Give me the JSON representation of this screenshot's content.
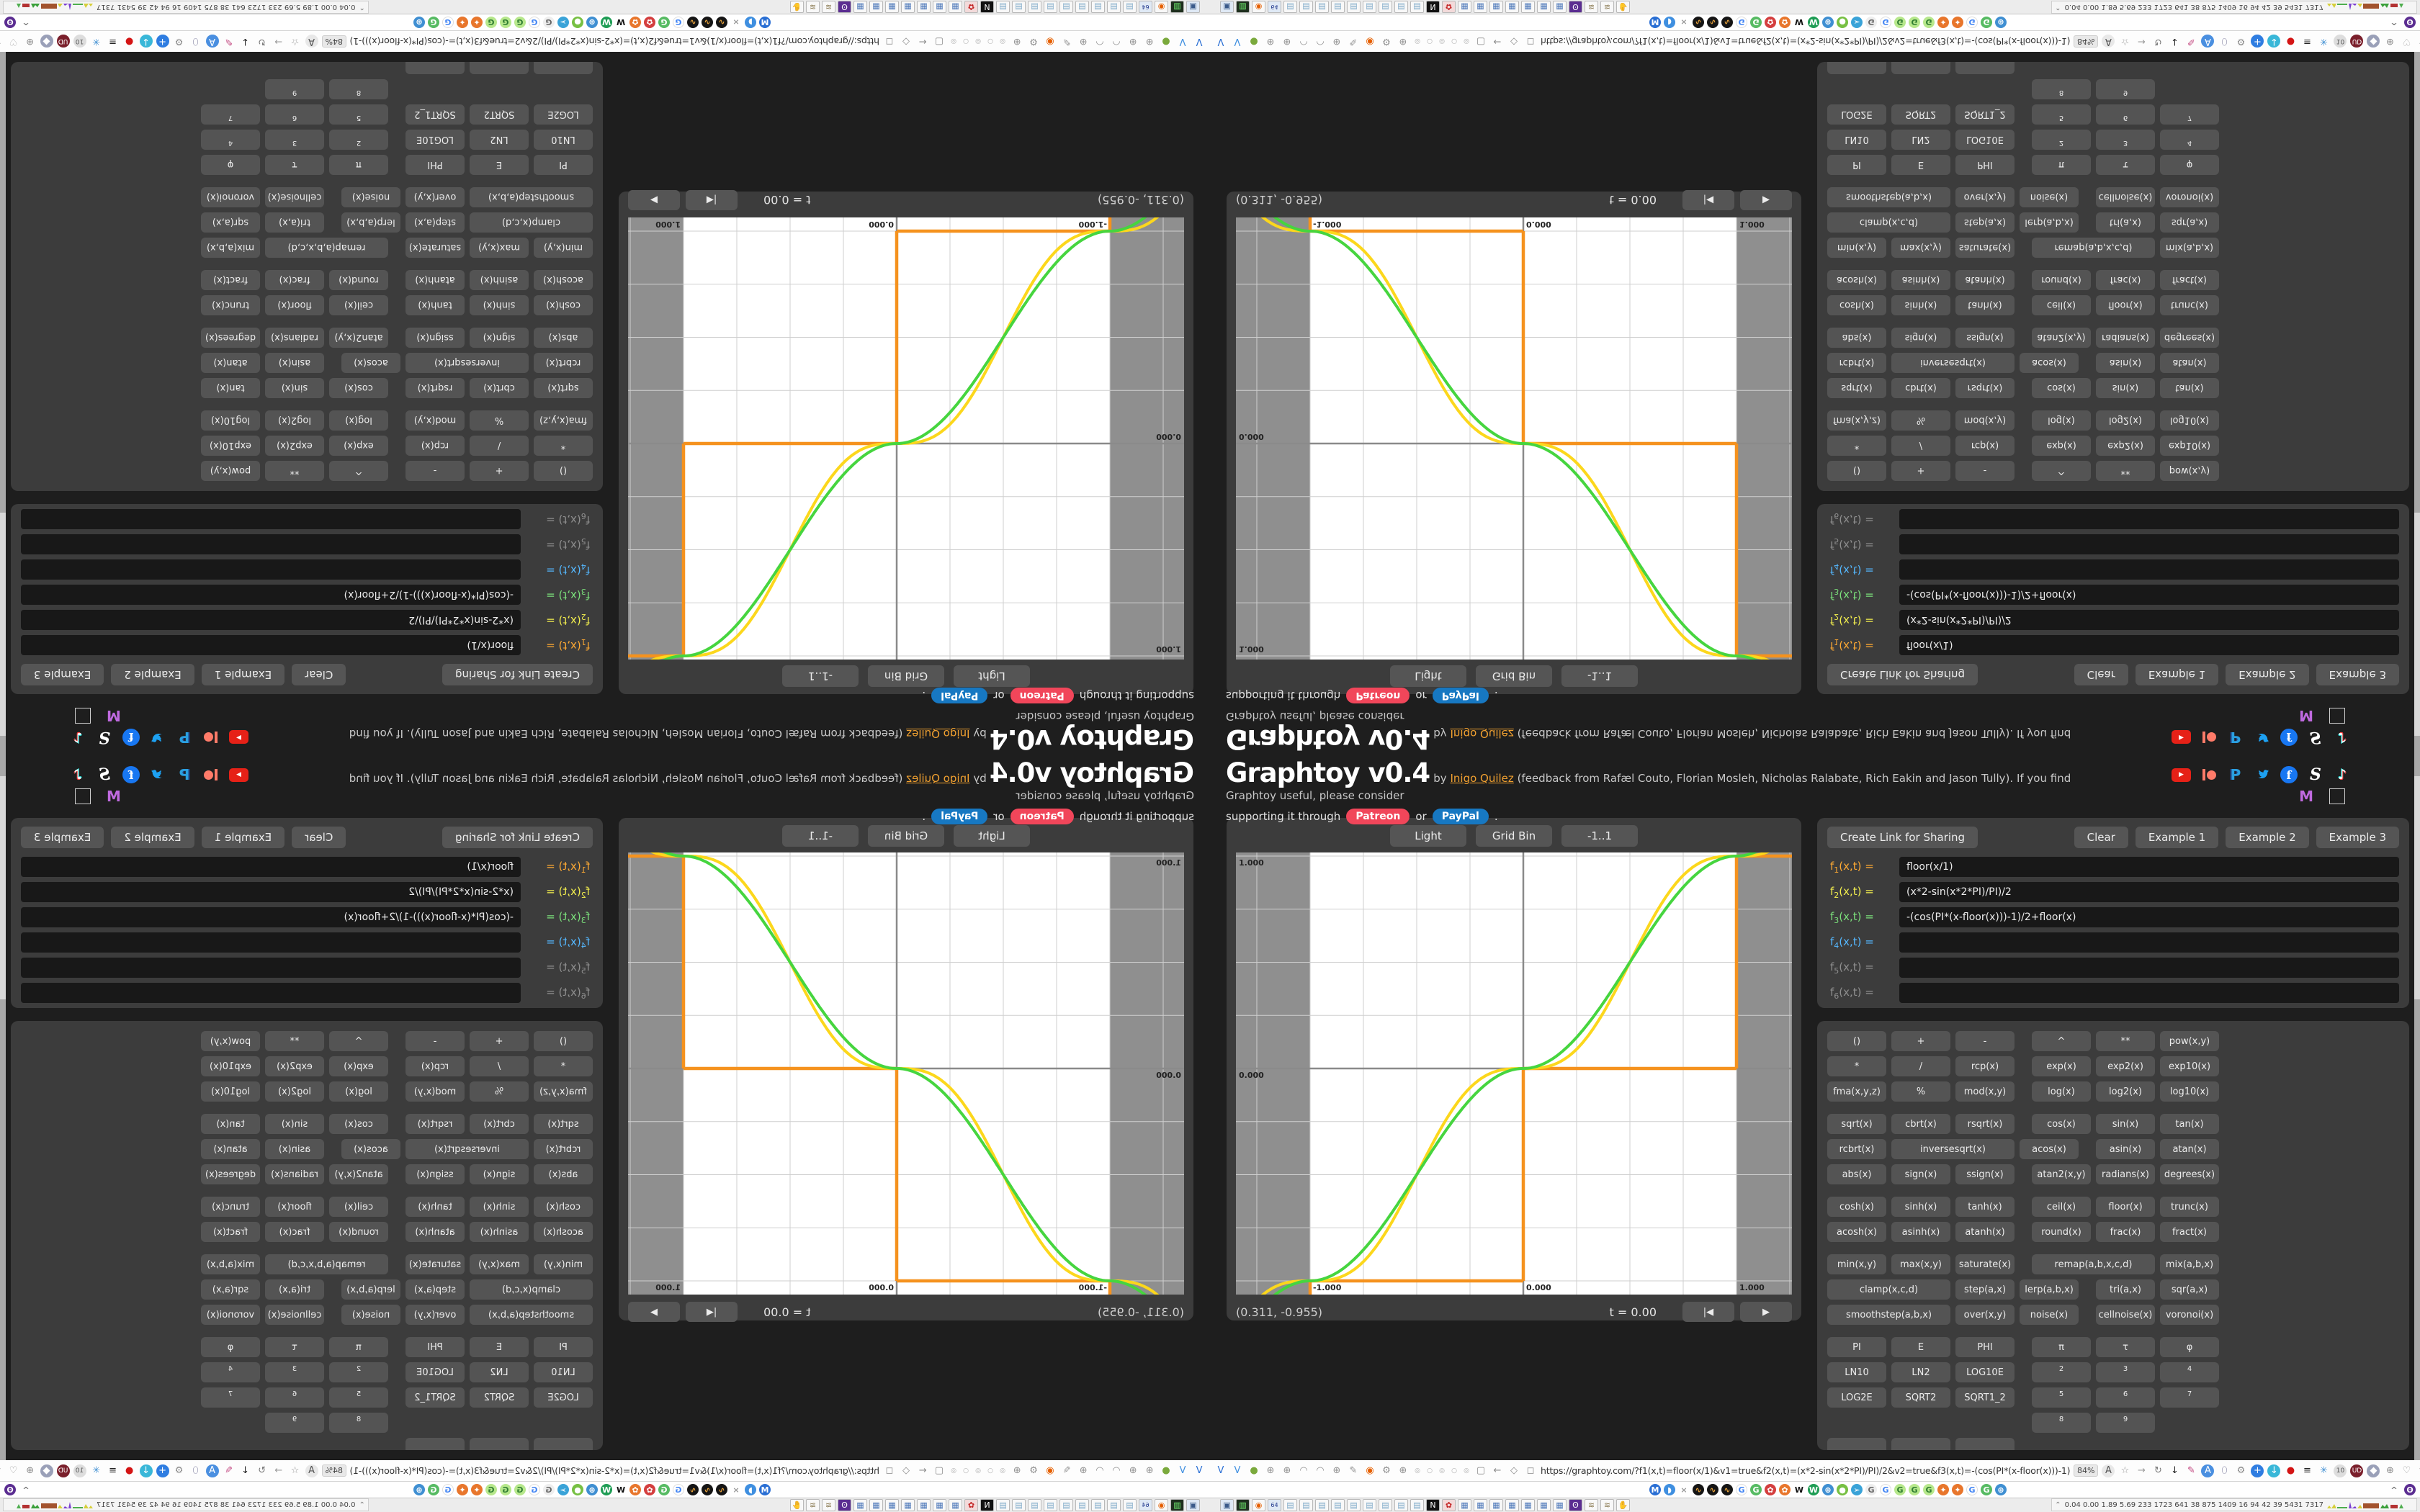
{
  "page": {
    "header": {
      "title": "Graphtoy v0.4",
      "by": "by",
      "author": "Inigo Quilez",
      "byline": "(feedback from Rafæl Couto, Florian Mosleh, Nicholas Ralabate, Rich Eakin and Jason Tully). If you find Graphtoy useful, please consider",
      "support_prefix": "supporting it through",
      "patreon": "Patreon",
      "or": "or",
      "paypal": "PayPal",
      "period": "."
    },
    "social": [
      "youtube-icon",
      "patreon-icon",
      "paypal-icon",
      "twitter-icon",
      "facebook-icon",
      "substack-icon",
      "tiktok-icon"
    ],
    "social2": [
      "mastodon-m-icon",
      "broken-image-icon"
    ],
    "graph": {
      "toolbar": [
        "Light",
        "Grid Bin",
        "-1..1"
      ],
      "coords": "(0.311, -0.955)",
      "time": "t = 0.00",
      "rewind_label": "|◀",
      "play_label": "▶"
    },
    "formulas": {
      "create_link": "Create Link for Sharing",
      "actions": [
        "Clear",
        "Example 1",
        "Example 2",
        "Example 3"
      ],
      "label_suffix": "(x,t) =",
      "rows": [
        {
          "idx": "1",
          "value": "floor(x/1)",
          "color": "#ffaa33"
        },
        {
          "idx": "2",
          "value": "(x*2-sin(x*2*PI)/PI)/2",
          "color": "#f2ee4e"
        },
        {
          "idx": "3",
          "value": "-(cos(PI*(x-floor(x)))-1)/2+floor(x)",
          "color": "#7be07b"
        },
        {
          "idx": "4",
          "value": "",
          "color": "#55b8ff"
        },
        {
          "idx": "5",
          "value": "",
          "color": "#8f8f8f"
        },
        {
          "idx": "6",
          "value": "",
          "color": "#8f8f8f"
        }
      ]
    },
    "grid_rows": [
      {
        "cells": [
          {
            "t": "()"
          },
          {
            "t": "+"
          },
          {
            "t": "-"
          },
          {
            "t": "^"
          },
          {
            "t": "**"
          },
          {
            "t": "pow(x,y)"
          }
        ]
      },
      {
        "cells": [
          {
            "t": "*"
          },
          {
            "t": "/"
          },
          {
            "t": "rcp(x)"
          },
          {
            "t": "exp(x)"
          },
          {
            "t": "exp2(x)"
          },
          {
            "t": "exp10(x)"
          }
        ]
      },
      {
        "cells": [
          {
            "t": "fma(x,y,z)"
          },
          {
            "t": "%"
          },
          {
            "t": "mod(x,y)"
          },
          {
            "t": "log(x)"
          },
          {
            "t": "log2(x)"
          },
          {
            "t": "log10(x)"
          }
        ]
      },
      {
        "grp": true,
        "cells": [
          {
            "t": "sqrt(x)"
          },
          {
            "t": "cbrt(x)"
          },
          {
            "t": "rsqrt(x)"
          },
          {
            "t": "cos(x)"
          },
          {
            "t": "sin(x)"
          },
          {
            "t": "tan(x)"
          }
        ]
      },
      {
        "cells": [
          {
            "t": "rcbrt(x)"
          },
          {
            "t": "inversesqrt(x)",
            "span": 2
          },
          {
            "t": "acos(x)"
          },
          {
            "t": "asin(x)"
          },
          {
            "t": "atan(x)"
          }
        ]
      },
      {
        "cells": [
          {
            "t": "abs(x)"
          },
          {
            "t": "sign(x)"
          },
          {
            "t": "ssign(x)"
          },
          {
            "t": "atan2(x,y)"
          },
          {
            "t": "radians(x)"
          },
          {
            "t": "degrees(x)"
          }
        ]
      },
      {
        "grp": true,
        "cells": [
          {
            "t": "cosh(x)"
          },
          {
            "t": "sinh(x)"
          },
          {
            "t": "tanh(x)"
          },
          {
            "t": "ceil(x)"
          },
          {
            "t": "floor(x)"
          },
          {
            "t": "trunc(x)"
          }
        ]
      },
      {
        "cells": [
          {
            "t": "acosh(x)"
          },
          {
            "t": "asinh(x)"
          },
          {
            "t": "atanh(x)"
          },
          {
            "t": "round(x)"
          },
          {
            "t": "frac(x)"
          },
          {
            "t": "fract(x)"
          }
        ]
      },
      {
        "grp": true,
        "cells": [
          {
            "t": "min(x,y)"
          },
          {
            "t": "max(x,y)"
          },
          {
            "t": "saturate(x)"
          },
          {
            "t": "remap(a,b,x,c,d)",
            "span": 2
          },
          {
            "t": "mix(a,b,x)"
          }
        ]
      },
      {
        "cells": [
          {
            "t": "clamp(x,c,d)",
            "span": 2
          },
          {
            "t": "step(a,x)"
          },
          {
            "t": "lerp(a,b,x)"
          },
          {
            "t": "tri(a,x)"
          },
          {
            "t": "sqr(a,x)"
          }
        ]
      },
      {
        "cells": [
          {
            "t": "smoothstep(a,b,x)",
            "span": 2
          },
          {
            "t": "over(x,y)"
          },
          {
            "t": "noise(x)"
          },
          {
            "t": "cellnoise(x)"
          },
          {
            "t": "voronoi(x)"
          }
        ]
      },
      {
        "grp": true,
        "cells": [
          {
            "t": "PI"
          },
          {
            "t": "E"
          },
          {
            "t": "PHI"
          },
          {
            "t": "π",
            "cls": "konst"
          },
          {
            "t": "τ",
            "cls": "konst"
          },
          {
            "t": "φ",
            "cls": "konst"
          }
        ]
      },
      {
        "cells": [
          {
            "t": "LN10"
          },
          {
            "t": "LN2"
          },
          {
            "t": "LOG10E"
          },
          {
            "t": "2",
            "cls": "sup"
          },
          {
            "t": "3",
            "cls": "sup"
          },
          {
            "t": "4",
            "cls": "sup"
          }
        ]
      },
      {
        "cells": [
          {
            "t": "LOG2E"
          },
          {
            "t": "SQRT2"
          },
          {
            "t": "SQRT1_2"
          },
          {
            "t": "5",
            "cls": "sup"
          },
          {
            "t": "6",
            "cls": "sup"
          },
          {
            "t": "7",
            "cls": "sup"
          }
        ]
      },
      {
        "cells": [
          {
            "t": "",
            "ghost": true
          },
          {
            "t": "",
            "ghost": true
          },
          {
            "t": "",
            "ghost": true
          },
          {
            "t": "8",
            "cls": "sup"
          },
          {
            "t": "9",
            "cls": "sup"
          },
          {
            "t": "",
            "ghost": true
          }
        ]
      },
      {
        "cells": [
          {
            "t": ""
          },
          {
            "t": ""
          },
          {
            "t": ""
          },
          {
            "t": "",
            "ghost": true
          },
          {
            "t": "",
            "ghost": true
          },
          {
            "t": "",
            "ghost": true
          }
        ]
      }
    ]
  },
  "chart_data": {
    "type": "line",
    "title": "",
    "xlabel": "",
    "ylabel": "",
    "x_range": [
      -1.35,
      1.26
    ],
    "y_range": [
      -1.04,
      1.02
    ],
    "highlight_band_x": [
      -1,
      1
    ],
    "grid_step": 0.25,
    "x_tick_labels": [
      {
        "x": -1,
        "t": "-1.000"
      },
      {
        "x": 0,
        "t": "0.000"
      },
      {
        "x": 1,
        "t": "1.000"
      }
    ],
    "y_tick_labels": [
      {
        "y": 1,
        "t": "1.000"
      },
      {
        "y": 0,
        "t": "0.000"
      }
    ],
    "legend_position": "none",
    "series": [
      {
        "id": "f1",
        "formula": "floor(x/1)",
        "color": "#f5921e",
        "style": "step",
        "lattice_points": [
          [
            -2,
            -2
          ],
          [
            -1,
            -1
          ],
          [
            0,
            0
          ],
          [
            1,
            1
          ]
        ]
      },
      {
        "id": "f2",
        "formula": "(x*2-sin(x*2*PI)/PI)/2",
        "color": "#fcd71c",
        "style": "smooth"
      },
      {
        "id": "f3",
        "formula": "-(cos(PI*(x-floor(x)))-1)/2+floor(x)",
        "color": "#46d53f",
        "style": "smooth"
      }
    ],
    "colors": {
      "plot_bg": "#ffffff",
      "out_of_range_bg": "#8f8f8f",
      "grid": "#cfcfcf",
      "axis": "#8a8a8a",
      "label": "#222222"
    }
  },
  "browser": {
    "url": "https://graphtoy.com/?f1(x,t)=floor(x/1)&v1=true&f2(x,t)=(x*2-sin(x*2*PI)/PI)/2&v2=true&f3(x,t)=-(cos(PI*(x-floor(x)))-1)/2+floor(x)&v3=true&f4(x,t)=&v4=true&f5(x,t)=&v5=false",
    "zoom": "84%",
    "left_icons": [
      {
        "t": "V",
        "fg": "#2a6fd4"
      },
      {
        "t": "V",
        "fg": "#3f8fe0"
      },
      {
        "t": "●",
        "fg": "#7aa93c"
      },
      {
        "t": "⊕",
        "fg": "#909090"
      },
      {
        "t": "⊕",
        "fg": "#909090"
      },
      {
        "t": "◠",
        "fg": "#909090"
      },
      {
        "t": "◠",
        "fg": "#909090"
      },
      {
        "t": "⊕",
        "fg": "#909090"
      },
      {
        "t": "✎",
        "fg": "#909090"
      },
      {
        "t": "◉",
        "fg": "#e66000"
      },
      {
        "t": "⚙",
        "fg": "#909090"
      },
      {
        "t": "⊕",
        "fg": "#909090"
      }
    ],
    "crumb_icons": [
      {
        "t": "◎",
        "fg": "#aaa"
      },
      {
        "t": "○",
        "fg": "#aaa"
      },
      {
        "t": "◎",
        "fg": "#aaa"
      },
      {
        "t": "○",
        "fg": "#aaa"
      },
      {
        "t": "◎",
        "fg": "#aaa"
      }
    ],
    "nav_icons": [
      {
        "t": "▢",
        "fg": "#8a8a8a"
      },
      {
        "t": "←",
        "fg": "#8a8a8a"
      },
      {
        "t": "◇",
        "fg": "#8a8a8a"
      },
      {
        "t": "◻",
        "fg": "#8a8a8a"
      }
    ],
    "right_icons": [
      {
        "t": "A",
        "fg": "#555",
        "bg": "#e8e8e8"
      },
      {
        "t": "☆",
        "fg": "#9a9a9a"
      },
      {
        "t": "→",
        "fg": "#9a9a9a"
      },
      {
        "t": "↻",
        "fg": "#777"
      },
      {
        "t": "↓",
        "fg": "#222"
      },
      {
        "t": "✎",
        "fg": "#c2447e"
      },
      {
        "t": "A",
        "fg": "#fff",
        "bg": "#4a8fe0"
      },
      {
        "t": "⬯",
        "fg": "#8a8aa8"
      },
      {
        "t": "⚙",
        "fg": "#8a8a8a"
      },
      {
        "t": "+",
        "fg": "#fff",
        "bg": "#2f7de1"
      },
      {
        "t": "↓",
        "fg": "#fff",
        "bg": "#39b7d8"
      },
      {
        "t": "●",
        "fg": "#d41414"
      },
      {
        "t": "≡",
        "fg": "#222"
      },
      {
        "t": "✳",
        "fg": "#3f8fd2"
      },
      {
        "t": "10",
        "fg": "#555",
        "bg": "#ddd"
      },
      {
        "t": "UD",
        "fg": "#fff",
        "bg": "#7a1f2b"
      },
      {
        "t": "◆",
        "fg": "#fff",
        "bg": "#9aa0b8"
      },
      {
        "t": "⊕",
        "fg": "#8a8a8a"
      },
      {
        "t": "♡",
        "fg": "#9a9a9a"
      },
      {
        "t": "⚒",
        "fg": "#8a8a8a"
      },
      {
        "t": "⚙",
        "fg": "#8a8a8a"
      }
    ],
    "page_action": {
      "t": "●",
      "fg": "#35c04a"
    },
    "bookmarks": [
      {
        "t": "M",
        "fg": "#fff",
        "bg": "#2a6fd4"
      },
      {
        "t": "◗",
        "fg": "#fff",
        "bg": "#3f8fe0"
      },
      {
        "t": "×",
        "fg": "#999"
      },
      {
        "t": "∿",
        "fg": "#e8a33d",
        "bg": "#151515"
      },
      {
        "t": "∿",
        "fg": "#e8a33d",
        "bg": "#151515"
      },
      {
        "t": "∿",
        "fg": "#e8a33d",
        "bg": "#151515"
      },
      {
        "t": "G",
        "fg": "#4285f4",
        "bg": "#fff",
        "br": true
      },
      {
        "t": "G",
        "fg": "#fff",
        "bg": "#57bb63"
      },
      {
        "t": "✿",
        "fg": "#fff",
        "bg": "#d43f3f"
      },
      {
        "t": "✿",
        "fg": "#fff",
        "bg": "#e8762c"
      },
      {
        "t": "W",
        "fg": "#111"
      },
      {
        "t": "W",
        "fg": "#fff",
        "bg": "#1f9d55"
      },
      {
        "t": "⊕",
        "fg": "#fff",
        "bg": "#3f8fd2"
      },
      {
        "t": "●",
        "fg": "#fff",
        "bg": "#77c043"
      },
      {
        "t": "➢",
        "fg": "#fff",
        "bg": "#3aa3d8"
      },
      {
        "t": "G",
        "fg": "#666",
        "bg": "#eee"
      },
      {
        "t": "G",
        "fg": "#4285f4",
        "bg": "#fff",
        "br": true
      },
      {
        "t": "G",
        "fg": "#2f7d32",
        "bg": "#b7e88c"
      },
      {
        "t": "G",
        "fg": "#2f7d32",
        "bg": "#b7e88c"
      },
      {
        "t": "G",
        "fg": "#2f7d32",
        "bg": "#b7e88c"
      },
      {
        "t": "✦",
        "fg": "#fff",
        "bg": "#e8762c"
      },
      {
        "t": "✦",
        "fg": "#fff",
        "bg": "#e8762c"
      },
      {
        "t": "G",
        "fg": "#4285f4",
        "bg": "#fff",
        "br": true
      },
      {
        "t": "G",
        "fg": "#fff",
        "bg": "#57bb63"
      },
      {
        "t": "⊕",
        "fg": "#fff",
        "bg": "#3f8fd2"
      }
    ],
    "bookmarks_right": [
      {
        "t": "^",
        "fg": "#777"
      },
      {
        "t": "ʘ",
        "fg": "#fff",
        "bg": "#5b2d91"
      }
    ],
    "tray": "0.04 0.00 1.89 5.69 233 1723 641 38 875 1409 16 94 42 39 5431 7317"
  },
  "taskbar": {
    "buttons": [
      {
        "t": "▣",
        "fg": "#3a5a8a",
        "bg": "#dfe9f5"
      },
      {
        "t": "▥",
        "fg": "#77ff77",
        "bg": "#1e2f1e"
      },
      {
        "t": "◉",
        "fg": "#e66000"
      },
      {
        "t": "64",
        "fg": "#223a8f",
        "bg": "#dfe9f5"
      },
      {
        "t": "▤",
        "fg": "#7aa7c7"
      },
      {
        "t": "▤",
        "fg": "#7aa7c7"
      },
      {
        "t": "▤",
        "fg": "#7aa7c7"
      },
      {
        "t": "▤",
        "fg": "#7aa7c7"
      },
      {
        "t": "▤",
        "fg": "#7aa7c7"
      },
      {
        "t": "▤",
        "fg": "#7aa7c7"
      },
      {
        "t": "▤",
        "fg": "#7aa7c7"
      },
      {
        "t": "▤",
        "fg": "#7aa7c7"
      },
      {
        "t": "▤",
        "fg": "#7aa7c7"
      },
      {
        "t": "N",
        "fg": "#fff",
        "bg": "#111"
      },
      {
        "t": "✿",
        "fg": "#c22222",
        "bg": "#f3dada"
      },
      {
        "t": "▦",
        "fg": "#4a76b8"
      },
      {
        "t": "▦",
        "fg": "#4a76b8"
      },
      {
        "t": "▦",
        "fg": "#4a76b8"
      },
      {
        "t": "▦",
        "fg": "#4a76b8"
      },
      {
        "t": "▦",
        "fg": "#4a76b8"
      },
      {
        "t": "▦",
        "fg": "#4a76b8"
      },
      {
        "t": "▦",
        "fg": "#4a76b8"
      },
      {
        "t": "ʘ",
        "fg": "#fff",
        "bg": "#5b2d91"
      },
      {
        "t": "≋",
        "fg": "#8a7a52"
      },
      {
        "t": "≋",
        "fg": "#8a7a52"
      },
      {
        "t": "✋",
        "fg": "#bbb"
      }
    ],
    "spark_colors": [
      "#d6cf3a",
      "#4fae4f",
      "#7b3fd0",
      "#a2522d",
      "#3aa03a",
      "#b33232"
    ]
  }
}
